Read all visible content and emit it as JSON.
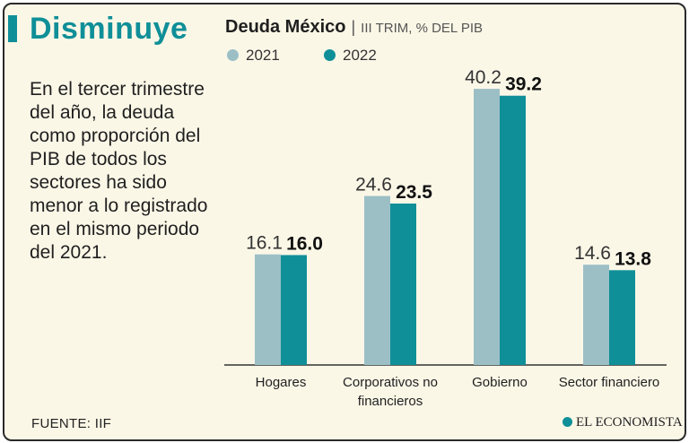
{
  "headline": "Disminuye",
  "body_text": "En el tercer trimestre del año, la deuda como proporción del PIB de todos los sectores ha sido menor a lo registrado en el mismo periodo del 2021.",
  "source": "FUENTE: IIF",
  "logo_text": "EL ECONOMISTA",
  "colors": {
    "accent": "#0f8f98",
    "series_2021": "#9cbfc6",
    "series_2022": "#0f8f98",
    "background": "#fbf7e7"
  },
  "chart_data": {
    "type": "bar",
    "title": "Deuda México",
    "subtitle": "III TRIM, % DEL PIB",
    "categories": [
      [
        "Hogares"
      ],
      [
        "Corporativos no",
        "financieros"
      ],
      [
        "Gobierno"
      ],
      [
        "Sector financiero"
      ]
    ],
    "series": [
      {
        "name": "2021",
        "values": [
          16.1,
          24.6,
          40.2,
          14.6
        ],
        "labels": [
          "16.1",
          "24.6",
          "40.2",
          "14.6"
        ]
      },
      {
        "name": "2022",
        "values": [
          16.0,
          23.5,
          39.2,
          13.8
        ],
        "labels": [
          "16.0",
          "23.5",
          "39.2",
          "13.8"
        ]
      }
    ],
    "ylim": [
      0,
      40.2
    ],
    "xlabel": "",
    "ylabel": "",
    "grid": false,
    "legend": "top-left"
  }
}
